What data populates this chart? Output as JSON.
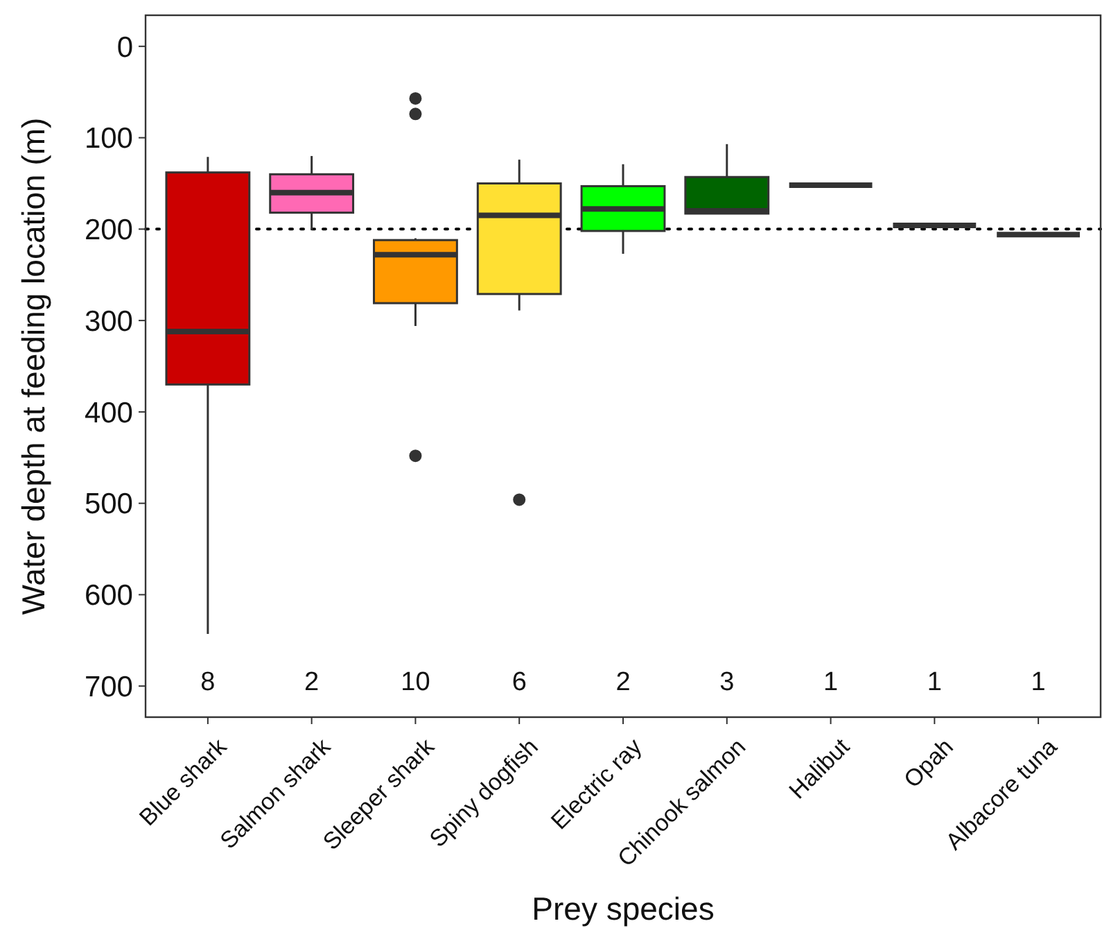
{
  "chart_data": {
    "type": "box",
    "xlabel": "Prey species",
    "ylabel": "Water depth at feeding location (m)",
    "categories": [
      "Blue shark",
      "Salmon shark",
      "Sleeper shark",
      "Spiny dogfish",
      "Electric ray",
      "Chinook salmon",
      "Halibut",
      "Opah",
      "Albacore tuna"
    ],
    "colors": [
      "#cc0000",
      "#ff69b4",
      "#ff9900",
      "#ffe033",
      "#00ff00",
      "#006400",
      "#333333",
      "#333333",
      "#333333"
    ],
    "boxes": [
      {
        "low": 121,
        "q1": 138,
        "median": 312,
        "q3": 370,
        "high": 643
      },
      {
        "low": 120,
        "q1": 140,
        "median": 160,
        "q3": 182,
        "high": 201
      },
      {
        "low": 210,
        "q1": 212,
        "median": 228,
        "q3": 281,
        "high": 306,
        "outliers": [
          57,
          74,
          448
        ]
      },
      {
        "low": 124,
        "q1": 150,
        "median": 185,
        "q3": 271,
        "high": 289,
        "outliers": [
          496
        ]
      },
      {
        "low": 129,
        "q1": 153,
        "median": 178,
        "q3": 202,
        "high": 227
      },
      {
        "low": 107,
        "q1": 143,
        "median": 180,
        "q3": 183,
        "high": 183
      },
      {
        "low": 152,
        "q1": 152,
        "median": 152,
        "q3": 152,
        "high": 152
      },
      {
        "low": 196,
        "q1": 196,
        "median": 196,
        "q3": 196,
        "high": 196
      },
      {
        "low": 206,
        "q1": 206,
        "median": 206,
        "q3": 206,
        "high": 206
      }
    ],
    "ylim": [
      734,
      -34
    ],
    "yticks": [
      0,
      100,
      200,
      300,
      400,
      500,
      600,
      700
    ],
    "ref_lines": [
      {
        "axis": "y",
        "value": 200,
        "line_style": "dotted",
        "color": "#000000"
      }
    ],
    "annotations": [
      "8",
      "2",
      "10",
      "6",
      "2",
      "3",
      "1",
      "1",
      "1"
    ]
  }
}
